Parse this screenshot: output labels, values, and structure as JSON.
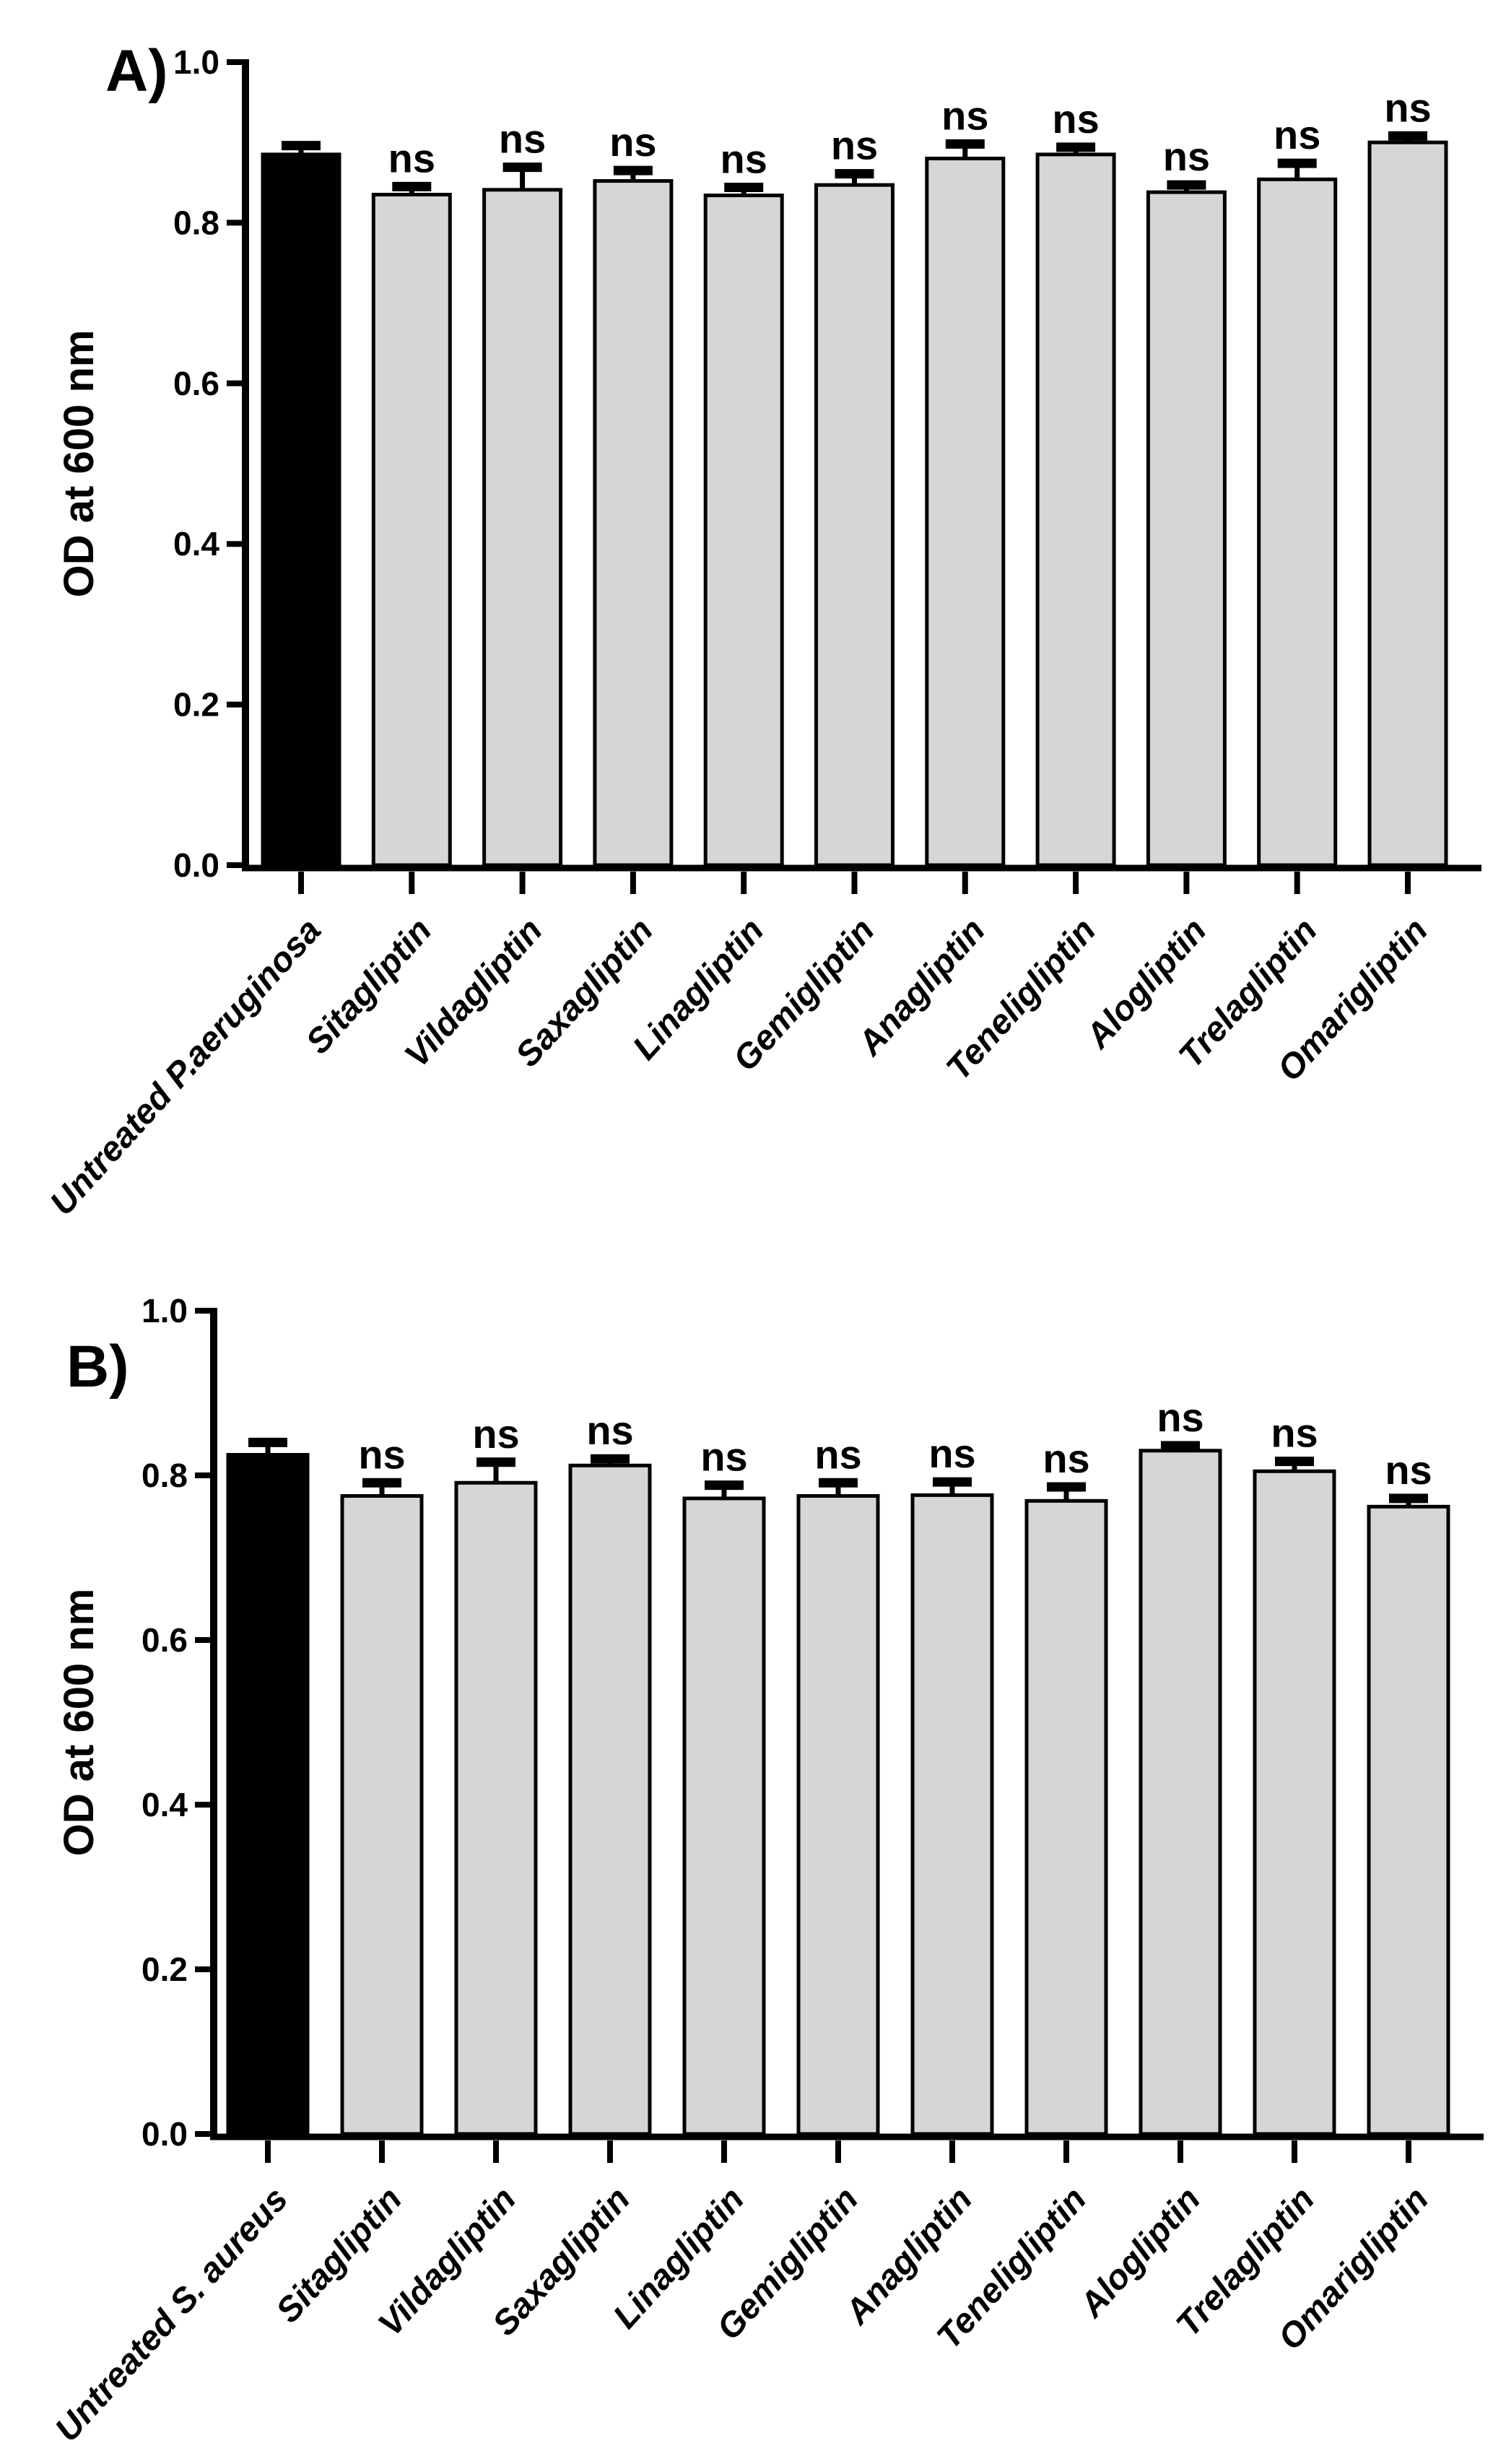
{
  "figure": {
    "background": "#ffffff",
    "text_color": "#000000",
    "control_bar_fill": "#000000",
    "treated_bar_fill": "#d6d6d6",
    "bar_stroke": "#000000",
    "ns_label": "ns"
  },
  "chart_data": [
    {
      "type": "bar",
      "panel_label": "A)",
      "ylabel": "OD at 600 nm",
      "xlabel": "",
      "ylim": [
        0.0,
        1.0
      ],
      "ytick_labels": [
        "0.0",
        "0.2",
        "0.4",
        "0.6",
        "0.8",
        "1.0"
      ],
      "ytick_values": [
        0.0,
        0.2,
        0.4,
        0.6,
        0.8,
        1.0
      ],
      "grid": false,
      "legend": "none",
      "control_index": 0,
      "categories": [
        "Untreated P.aeruginosa",
        "Sitagliptin",
        "Vildagliptin",
        "Saxagliptin",
        "Linagliptin",
        "Gemigliptin",
        "Anagliptin",
        "Teneligliptin",
        "Alogliptin",
        "Trelagliptin",
        "Omarigliptin"
      ],
      "values": [
        0.885,
        0.835,
        0.841,
        0.852,
        0.834,
        0.847,
        0.88,
        0.885,
        0.838,
        0.854,
        0.9
      ],
      "errors_plus": [
        0.011,
        0.01,
        0.028,
        0.013,
        0.01,
        0.014,
        0.018,
        0.009,
        0.009,
        0.02,
        0.008
      ],
      "annotations": [
        "",
        "ns",
        "ns",
        "ns",
        "ns",
        "ns",
        "ns",
        "ns",
        "ns",
        "ns",
        "ns"
      ]
    },
    {
      "type": "bar",
      "panel_label": "B)",
      "ylabel": "OD at 600 nm",
      "xlabel": "",
      "ylim": [
        0.0,
        1.0
      ],
      "ytick_labels": [
        "0.0",
        "0.2",
        "0.4",
        "0.6",
        "0.8",
        "1.0"
      ],
      "ytick_values": [
        0.0,
        0.2,
        0.4,
        0.6,
        0.8,
        1.0
      ],
      "grid": false,
      "legend": "none",
      "control_index": 0,
      "categories": [
        "Untreated S. aureus",
        "Sitagliptin",
        "Vildagliptin",
        "Saxagliptin",
        "Linagliptin",
        "Gemigliptin",
        "Anagliptin",
        "Teneligliptin",
        "Alogliptin",
        "Trelagliptin",
        "Omarigliptin"
      ],
      "values": [
        0.825,
        0.775,
        0.791,
        0.812,
        0.772,
        0.775,
        0.776,
        0.769,
        0.83,
        0.805,
        0.762
      ],
      "errors_plus": [
        0.015,
        0.016,
        0.025,
        0.008,
        0.016,
        0.016,
        0.016,
        0.017,
        0.006,
        0.012,
        0.01
      ],
      "annotations": [
        "",
        "ns",
        "ns",
        "ns",
        "ns",
        "ns",
        "ns",
        "ns",
        "ns",
        "ns",
        "ns"
      ]
    }
  ]
}
